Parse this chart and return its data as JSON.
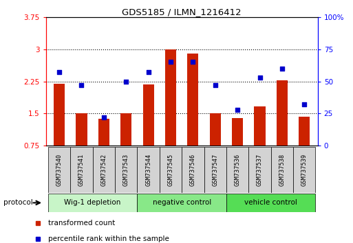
{
  "title": "GDS5185 / ILMN_1216412",
  "samples": [
    "GSM737540",
    "GSM737541",
    "GSM737542",
    "GSM737543",
    "GSM737544",
    "GSM737545",
    "GSM737546",
    "GSM737547",
    "GSM737536",
    "GSM737537",
    "GSM737538",
    "GSM737539"
  ],
  "red_bars": [
    2.2,
    1.5,
    1.38,
    1.5,
    2.18,
    3.0,
    2.9,
    1.5,
    1.4,
    1.67,
    2.28,
    1.43
  ],
  "blue_dots": [
    57,
    47,
    22,
    50,
    57,
    65,
    65,
    47,
    28,
    53,
    60,
    32
  ],
  "groups": [
    {
      "label": "Wig-1 depletion",
      "start": 0,
      "end": 3,
      "color": "#c8f5c8"
    },
    {
      "label": "negative control",
      "start": 4,
      "end": 7,
      "color": "#88e888"
    },
    {
      "label": "vehicle control",
      "start": 8,
      "end": 11,
      "color": "#55dd55"
    }
  ],
  "bar_color": "#cc2200",
  "dot_color": "#0000cc",
  "ylim_left": [
    0.75,
    3.75
  ],
  "ylim_right": [
    0,
    100
  ],
  "yticks_left": [
    0.75,
    1.5,
    2.25,
    3.0,
    3.75
  ],
  "yticks_right": [
    0,
    25,
    50,
    75,
    100
  ],
  "ytick_labels_left": [
    "0.75",
    "1.5",
    "2.25",
    "3",
    "3.75"
  ],
  "ytick_labels_right": [
    "0",
    "25",
    "50",
    "75",
    "100%"
  ],
  "legend_red": "transformed count",
  "legend_blue": "percentile rank within the sample",
  "protocol_label": "protocol",
  "bar_width": 0.5,
  "base_value": 0.75
}
